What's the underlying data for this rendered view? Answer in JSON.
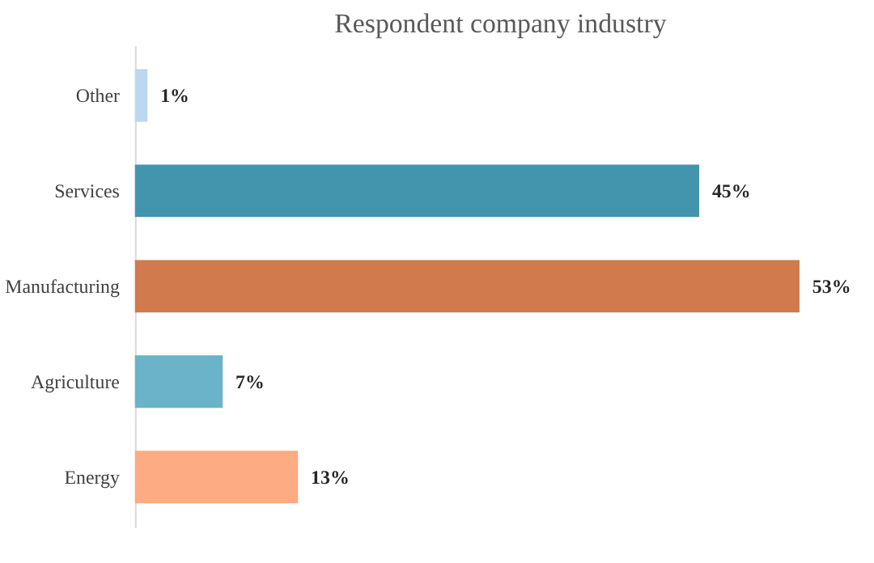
{
  "chart_data": {
    "type": "bar",
    "orientation": "horizontal",
    "title": "Respondent company industry",
    "categories": [
      "Other",
      "Services",
      "Manufacturing",
      "Agriculture",
      "Energy"
    ],
    "values": [
      1,
      45,
      53,
      7,
      13
    ],
    "colors": [
      "#bdd7ee",
      "#4295ad",
      "#d07a4e",
      "#6ab3c9",
      "#fdab82"
    ],
    "value_labels": [
      "1%",
      "45%",
      "53%",
      "7%",
      "13%"
    ],
    "grid": false,
    "legend": false
  }
}
